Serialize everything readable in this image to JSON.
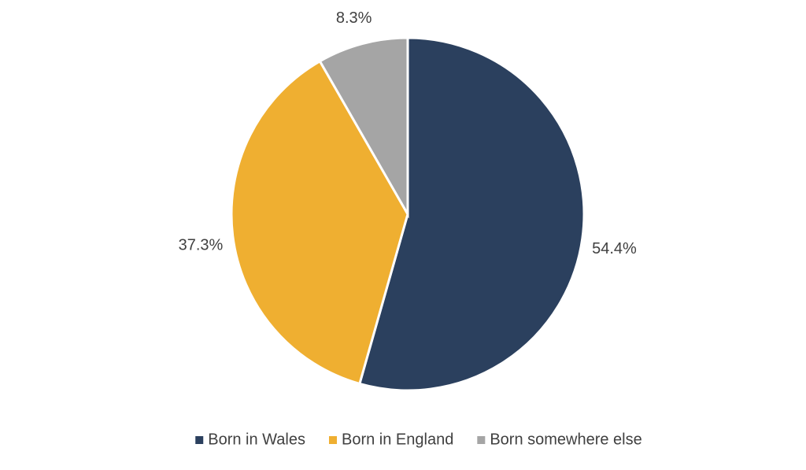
{
  "chart_data": {
    "type": "pie",
    "categories": [
      "Born in Wales",
      "Born in England",
      "Born somewhere else"
    ],
    "values": [
      54.4,
      37.3,
      8.3
    ],
    "value_labels": [
      "54.4%",
      "37.3%",
      "8.3%"
    ],
    "colors": [
      "#2b405e",
      "#efaf31",
      "#a5a5a5"
    ],
    "legend": "bottom"
  }
}
